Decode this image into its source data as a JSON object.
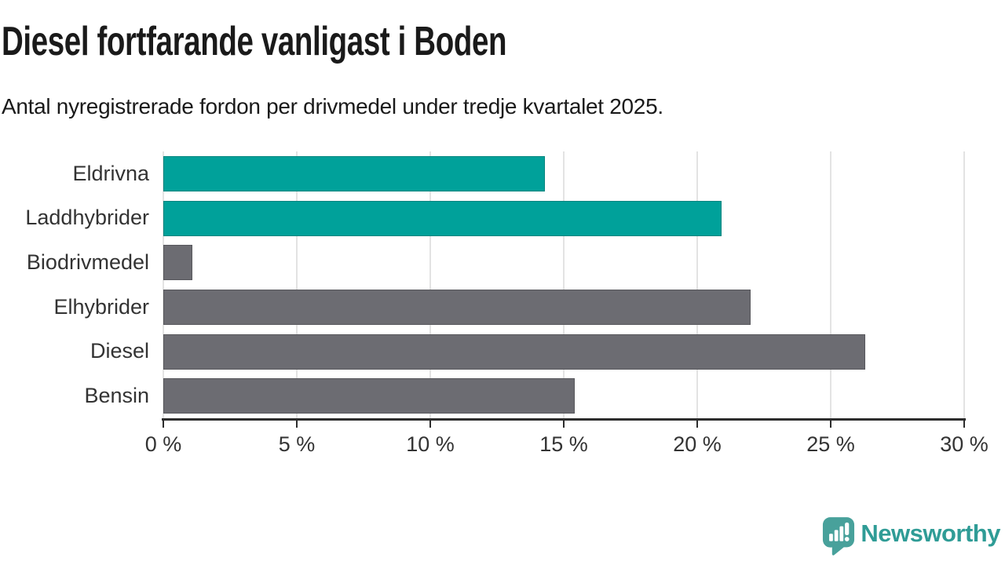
{
  "header": {
    "title": "Diesel fortfarande vanligast i Boden",
    "subtitle": "Antal nyregistrerade fordon per drivmedel under tredje kvartalet 2025."
  },
  "chart_data": {
    "type": "bar",
    "orientation": "horizontal",
    "title": "Diesel fortfarande vanligast i Boden",
    "subtitle": "Antal nyregistrerade fordon per drivmedel under tredje kvartalet 2025.",
    "categories": [
      "Eldrivna",
      "Laddhybrider",
      "Biodrivmedel",
      "Elhybrider",
      "Diesel",
      "Bensin"
    ],
    "values": [
      14.3,
      20.9,
      1.1,
      22.0,
      26.3,
      15.4
    ],
    "unit": "%",
    "xlim": [
      0,
      30
    ],
    "x_tick_step": 5,
    "x_tick_labels": [
      "0 %",
      "5 %",
      "10 %",
      "15 %",
      "20 %",
      "25 %",
      "30 %"
    ],
    "grid": "vertical",
    "legend": "none",
    "bar_colors": [
      "#00A19A",
      "#00A19A",
      "#6C6C72",
      "#6C6C72",
      "#6C6C72",
      "#6C6C72"
    ]
  },
  "colors": {
    "accent_teal": "#00A19A",
    "neutral_gray": "#6C6C72",
    "gridline": "#E3E3E3",
    "axis": "#2D2D2D",
    "text_dark": "#1A1A1A",
    "text_label": "#333333",
    "brand_teal": "#2F9C96",
    "logo_bubble_teal": "#48A19B",
    "background": "#FFFFFF"
  },
  "footer": {
    "brand": "Newsworthy",
    "logo_icon": "newsworthy-speech-bubble-bar-chart-icon"
  }
}
